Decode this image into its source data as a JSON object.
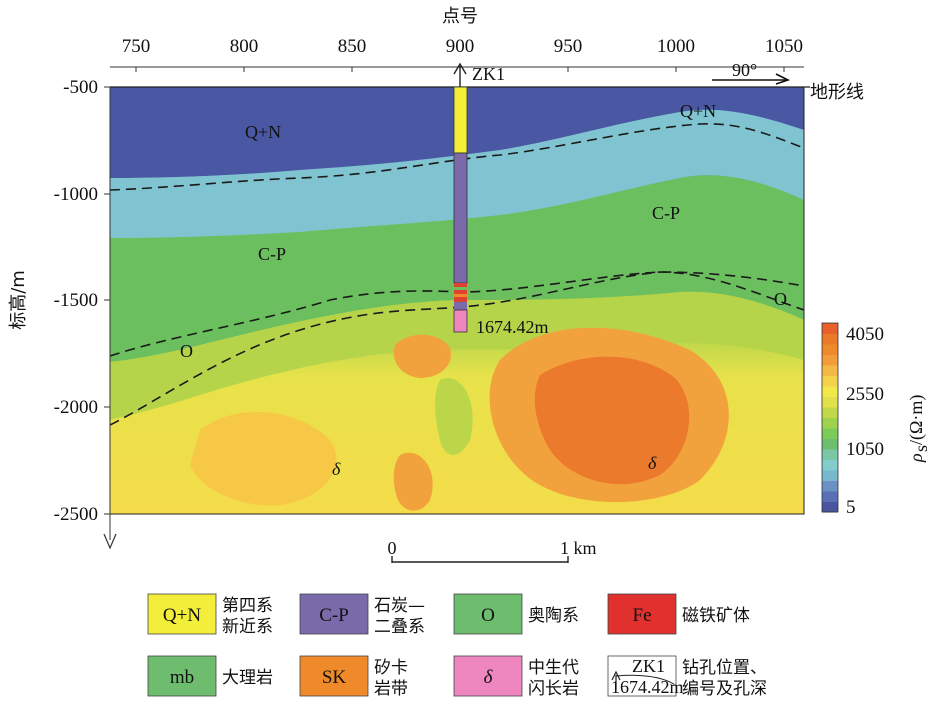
{
  "colors": {
    "section_blue": "#4a5aa6",
    "cyan": "#78c4c8",
    "green": "#6cbf5a",
    "yellow": "#f2e84a",
    "orange": "#ee8a2a",
    "borehole_yellow": "#f2ee3a",
    "borehole_purple": "#7a6aaa",
    "borehole_pink": "#ee86c0",
    "ore_red": "#e04030"
  },
  "top_axis": {
    "title": "点号",
    "ticks": [
      "750",
      "800",
      "850",
      "900",
      "950",
      "1000",
      "1050"
    ]
  },
  "left_axis": {
    "title": "标高/m",
    "ticks": [
      "-500",
      "-1000",
      "-1500",
      "-2000",
      "-2500"
    ]
  },
  "section": {
    "terrain_label": "地形线",
    "orientation": "90°",
    "borehole_name": "ZK1",
    "borehole_depth": "1674.42m",
    "unit_labels": [
      {
        "id": "qn-left",
        "text": "Q+N"
      },
      {
        "id": "qn-right",
        "text": "Q+N"
      },
      {
        "id": "cp-left",
        "text": "C-P"
      },
      {
        "id": "cp-right",
        "text": "C-P"
      },
      {
        "id": "o-left",
        "text": "O"
      },
      {
        "id": "o-right",
        "text": "O"
      },
      {
        "id": "delta-left",
        "text": "δ"
      },
      {
        "id": "delta-right",
        "text": "δ"
      }
    ]
  },
  "scale_bar": {
    "start": "0",
    "end": "1 km"
  },
  "colorbar": {
    "label_rho": "ρ",
    "label_sub": "s",
    "label_unit": "/(Ω·m)",
    "ticks": [
      "4050",
      "2550",
      "1050",
      "5"
    ],
    "colors": [
      "#4a55a0",
      "#5a70b4",
      "#6a90c4",
      "#78b8cc",
      "#82cccc",
      "#7cc6a8",
      "#6cbf6c",
      "#7ccb5a",
      "#9ed24c",
      "#c2d84a",
      "#e2e04a",
      "#f2e84a",
      "#f4d24a",
      "#f4b846",
      "#f29c3c",
      "#ee8a2a",
      "#ea7a2a",
      "#e8602a"
    ]
  },
  "legend": [
    {
      "symbol": "Q+N",
      "color": "#f2ee3a",
      "label_1": "第四系",
      "label_2": "新近系"
    },
    {
      "symbol": "C-P",
      "color": "#7a6aaa",
      "label_1": "石炭—",
      "label_2": "二叠系"
    },
    {
      "symbol": "O",
      "color": "#6ebc6e",
      "label_1": "奥陶系",
      "label_2": ""
    },
    {
      "symbol": "Fe",
      "color": "#e0312e",
      "label_1": "磁铁矿体",
      "label_2": ""
    },
    {
      "symbol": "mb",
      "color": "#6ebc6e",
      "label_1": "大理岩",
      "label_2": ""
    },
    {
      "symbol": "SK",
      "color": "#ee8a2a",
      "label_1": "矽卡",
      "label_2": "岩带"
    },
    {
      "symbol": "δ",
      "color": "#ee86c0",
      "label_1": "中生代",
      "label_2": "闪长岩"
    },
    {
      "symbol": "ZK1",
      "symbol_2": "1674.42m",
      "color": "#ffffff",
      "label_1": "钻孔位置、",
      "label_2": "编号及孔深"
    }
  ]
}
